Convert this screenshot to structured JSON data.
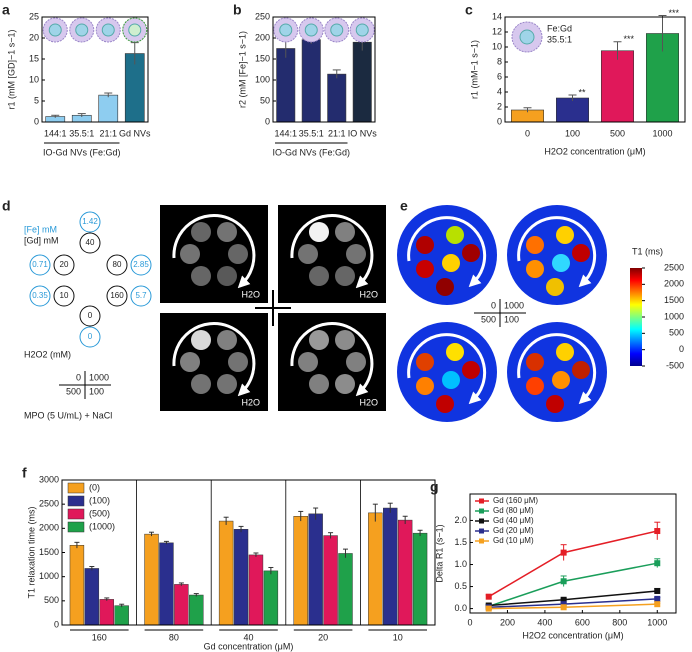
{
  "chart_data": [
    {
      "type": "bar",
      "panel": "a",
      "y_label": "r1 (mM [GD]−1 s−1)",
      "categories": [
        "144:1",
        "35.5:1",
        "21:1",
        "Gd NVs"
      ],
      "values": [
        1.3,
        1.6,
        6.4,
        16.3
      ],
      "errors": [
        0.3,
        0.4,
        0.5,
        2.6
      ],
      "colors": [
        "#8ecdf0",
        "#8ecdf0",
        "#8ecdf0",
        "#1e6f8a"
      ],
      "group_label": "IO-Gd NVs (Fe:Gd)",
      "ylim": [
        0,
        25
      ],
      "yticks": [
        0,
        5,
        10,
        15,
        20,
        25
      ]
    },
    {
      "type": "bar",
      "panel": "b",
      "y_label": "r2 (mM [Fe]−1 s−1)",
      "categories": [
        "144:1",
        "35.5:1",
        "21:1",
        "IO NVs"
      ],
      "values": [
        175,
        196,
        114,
        190
      ],
      "errors": [
        22,
        10,
        10,
        20
      ],
      "colors": [
        "#232c6e",
        "#232c6e",
        "#232c6e",
        "#1b2a40"
      ],
      "group_label": "IO-Gd NVs (Fe:Gd)",
      "ylim": [
        0,
        250
      ],
      "yticks": [
        0,
        50,
        100,
        150,
        200,
        250
      ]
    },
    {
      "type": "bar",
      "panel": "c",
      "y_label": "r1 (mM−1 s−1)",
      "x_label": "H2O2 concentration (μM)",
      "categories": [
        "0",
        "100",
        "500",
        "1000"
      ],
      "values": [
        1.6,
        3.2,
        9.5,
        11.8
      ],
      "errors": [
        0.3,
        0.4,
        1.2,
        2.4
      ],
      "colors": [
        "#f5a01f",
        "#2a2f8e",
        "#e0185a",
        "#1fa14a"
      ],
      "annotations": [
        null,
        "**",
        "***",
        "***"
      ],
      "inset_label": [
        "Fe:Gd",
        "35.5:1"
      ],
      "ylim": [
        0,
        14
      ],
      "yticks": [
        0,
        2,
        4,
        6,
        8,
        10,
        12,
        14
      ]
    },
    {
      "type": "grouped_bar",
      "panel": "f",
      "y_label": "T1 relaxation time (ms)",
      "x_label": "Gd concentration (μM)",
      "categories": [
        "160",
        "80",
        "40",
        "20",
        "10"
      ],
      "series": [
        {
          "name": "(0)",
          "color": "#f5a01f",
          "values": [
            1650,
            1880,
            2150,
            2250,
            2320
          ],
          "errors": [
            60,
            40,
            80,
            100,
            180
          ]
        },
        {
          "name": "(100)",
          "color": "#2a2f8e",
          "values": [
            1170,
            1700,
            1980,
            2300,
            2420
          ],
          "errors": [
            40,
            30,
            60,
            120,
            100
          ]
        },
        {
          "name": "(500)",
          "color": "#e0185a",
          "values": [
            530,
            840,
            1450,
            1850,
            2170
          ],
          "errors": [
            30,
            30,
            40,
            60,
            80
          ]
        },
        {
          "name": "(1000)",
          "color": "#1fa14a",
          "values": [
            400,
            620,
            1120,
            1480,
            1900
          ],
          "errors": [
            30,
            30,
            70,
            90,
            60
          ]
        }
      ],
      "ylim": [
        0,
        3000
      ],
      "yticks": [
        0,
        500,
        1000,
        1500,
        2000,
        2500,
        3000
      ]
    },
    {
      "type": "line",
      "panel": "g",
      "y_label": "Delta R1 (s−1)",
      "x_label": "H2O2 concentration (μM)",
      "x": [
        100,
        500,
        1000
      ],
      "series": [
        {
          "name": "Gd (160 μM)",
          "color": "#e41e26",
          "values": [
            0.27,
            1.27,
            1.76
          ],
          "errors": [
            0.04,
            0.18,
            0.2
          ]
        },
        {
          "name": "Gd (80 μM)",
          "color": "#1a9e5a",
          "values": [
            0.05,
            0.62,
            1.03
          ],
          "errors": [
            0.02,
            0.12,
            0.1
          ]
        },
        {
          "name": "Gd (40 μM)",
          "color": "#111111",
          "values": [
            0.07,
            0.2,
            0.4
          ],
          "errors": [
            0.02,
            0.03,
            0.05
          ]
        },
        {
          "name": "Gd (20 μM)",
          "color": "#2a2f8e",
          "values": [
            0.03,
            0.1,
            0.22
          ],
          "errors": [
            0.01,
            0.02,
            0.03
          ]
        },
        {
          "name": "Gd (10 μM)",
          "color": "#f5a01f",
          "values": [
            0.0,
            0.03,
            0.1
          ],
          "errors": [
            0.01,
            0.01,
            0.02
          ]
        }
      ],
      "xlim": [
        0,
        1100
      ],
      "xticks": [
        0,
        200,
        400,
        600,
        800,
        1000
      ],
      "ylim": [
        -0.1,
        2.6
      ],
      "yticks": [
        {
          "value": 0,
          "label": "0.0"
        },
        0.5,
        {
          "value": 1,
          "label": "1.0"
        },
        1.5,
        {
          "value": 2,
          "label": "2.0"
        }
      ]
    }
  ],
  "figure": {
    "panel_d": {
      "letter": "d",
      "fe_label": "[Fe] mM",
      "gd_label": "[Gd] mM",
      "pairs": [
        {
          "fe": "1.42",
          "gd": "40"
        },
        {
          "fe": "0.71",
          "gd": "20"
        },
        {
          "fe": "2.85",
          "gd": "80"
        },
        {
          "fe": "0.35",
          "gd": "10"
        },
        {
          "fe": "5.7",
          "gd": "160"
        },
        {
          "fe": "0",
          "gd": "0"
        }
      ],
      "h2o2_label": "H2O2 (mM)",
      "quadrants": [
        "0",
        "1000",
        "500",
        "100"
      ],
      "condition": "MPO (5 U/mL) + NaCl",
      "image_label": "H2O"
    },
    "panel_e": {
      "letter": "e",
      "quadrants": [
        "0",
        "1000",
        "500",
        "100"
      ],
      "colorbar": {
        "label": "T1 (ms)",
        "ticks": [
          2500,
          2000,
          1500,
          1000,
          500,
          0,
          -500
        ],
        "range": [
          -500,
          2500
        ]
      }
    }
  }
}
